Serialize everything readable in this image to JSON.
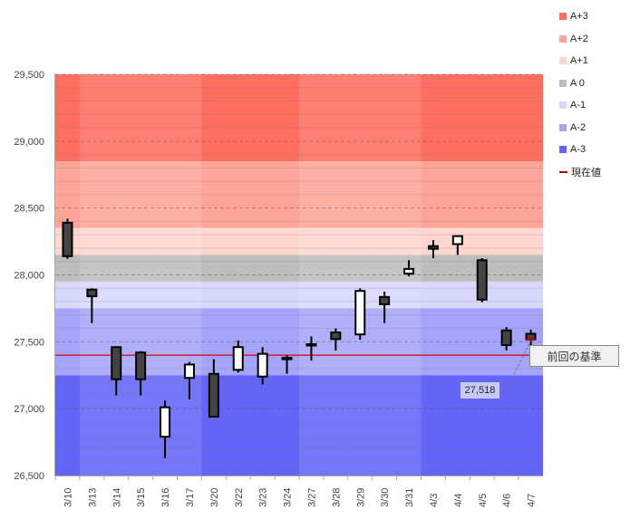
{
  "chart_data": {
    "type": "candlestick",
    "title": "",
    "ylim": [
      26500,
      29500
    ],
    "yticks": [
      26500,
      27000,
      27500,
      28000,
      28500,
      29000,
      29500
    ],
    "ytick_labels": [
      "26,500",
      "27,000",
      "27,500",
      "28,000",
      "28,500",
      "29,000",
      "29,500"
    ],
    "categories": [
      "3/10",
      "3/13",
      "3/14",
      "3/15",
      "3/16",
      "3/17",
      "3/20",
      "3/22",
      "3/23",
      "3/24",
      "3/27",
      "3/28",
      "3/29",
      "3/30",
      "3/31",
      "4/3",
      "4/4",
      "4/5",
      "4/6",
      "4/7"
    ],
    "ohlc": [
      [
        28390,
        28420,
        28120,
        28140
      ],
      [
        27890,
        27900,
        27640,
        27840
      ],
      [
        27460,
        27460,
        27100,
        27220
      ],
      [
        27420,
        27430,
        27100,
        27220
      ],
      [
        26790,
        27060,
        26630,
        27010
      ],
      [
        27230,
        27350,
        27070,
        27330
      ],
      [
        27260,
        27370,
        26940,
        26940
      ],
      [
        27290,
        27510,
        27270,
        27460
      ],
      [
        27240,
        27460,
        27180,
        27410
      ],
      [
        27380,
        27400,
        27260,
        27370
      ],
      [
        27480,
        27540,
        27360,
        27482
      ],
      [
        27570,
        27600,
        27435,
        27520
      ],
      [
        27555,
        27900,
        27515,
        27880
      ],
      [
        27835,
        27875,
        27640,
        27780
      ],
      [
        28010,
        28110,
        27990,
        28045
      ],
      [
        28215,
        28260,
        28125,
        28195
      ],
      [
        28230,
        28290,
        28150,
        28290
      ],
      [
        28110,
        28125,
        27795,
        27815
      ],
      [
        27585,
        27610,
        27435,
        27475
      ],
      [
        27560,
        27590,
        27470,
        27518
      ]
    ],
    "bands": [
      {
        "name": "A+3",
        "from": 28850,
        "to": 29500,
        "color": "#ff6e60"
      },
      {
        "name": "A+2",
        "from": 28350,
        "to": 28850,
        "color": "#ffa498"
      },
      {
        "name": "A+1",
        "from": 28150,
        "to": 28350,
        "color": "#ffd6d0"
      },
      {
        "name": "A 0",
        "from": 27950,
        "to": 28150,
        "color": "#bdbdbd"
      },
      {
        "name": "A-1",
        "from": 27750,
        "to": 27950,
        "color": "#d8d8fc"
      },
      {
        "name": "A-2",
        "from": 27250,
        "to": 27750,
        "color": "#a4a4fa"
      },
      {
        "name": "A-3",
        "from": 26500,
        "to": 27250,
        "color": "#6464f8"
      }
    ],
    "highlight_columns": [
      0,
      6,
      7,
      8,
      9,
      15,
      16,
      17,
      18,
      19
    ],
    "reference_line": {
      "value": 27400,
      "label": "前回の基準",
      "color": "#e00000"
    },
    "current_value": {
      "value": 27518,
      "label": "27,518"
    },
    "legend": {
      "placement": "right",
      "items": [
        {
          "label": "A+3",
          "color": "#ff6e60"
        },
        {
          "label": "A+2",
          "color": "#ffa498"
        },
        {
          "label": "A+1",
          "color": "#ffd6d0"
        },
        {
          "label": "A 0",
          "color": "#bdbdbd"
        },
        {
          "label": "A-1",
          "color": "#d8d8fc"
        },
        {
          "label": "A-2",
          "color": "#a4a4fa"
        },
        {
          "label": "A-3",
          "color": "#6464f8"
        },
        {
          "label": "現在値",
          "color": "#c00000",
          "type": "line"
        }
      ]
    }
  }
}
